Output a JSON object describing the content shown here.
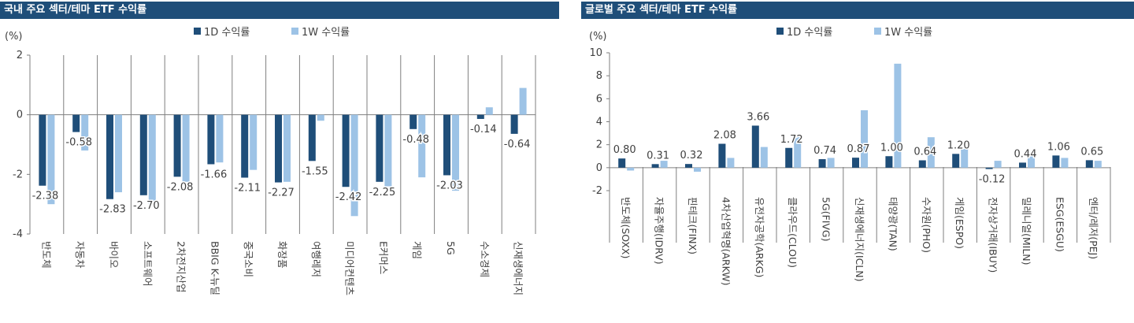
{
  "colors": {
    "title_bg": "#1f4e79",
    "series_1d": "#1f4e79",
    "series_1w": "#9dc3e6",
    "axis": "#7f7f7f",
    "text": "#404040"
  },
  "chart_data": [
    {
      "type": "bar",
      "title": "국내 주요 섹터/테마 ETF 수익률",
      "ylabel": "(%)",
      "xlabel": "",
      "ylim": [
        -4,
        2
      ],
      "yticks": [
        2,
        0,
        -2,
        -4
      ],
      "grid": false,
      "legend_position": "top",
      "categories": [
        "반도체",
        "자동차",
        "바이오",
        "소프트웨어",
        "2차전지산업",
        "BBIG K-뉴딜",
        "중국소비",
        "화장품",
        "여행레저",
        "미디어컨텐츠",
        "E커머스",
        "게임",
        "5G",
        "수소경제",
        "신재생에너지"
      ],
      "series": [
        {
          "name": "1D 수익률",
          "values": [
            -2.38,
            -0.58,
            -2.83,
            -2.7,
            -2.08,
            -1.66,
            -2.11,
            -2.27,
            -1.55,
            -2.42,
            -2.25,
            -0.48,
            -2.03,
            -0.14,
            -0.64
          ]
        },
        {
          "name": "1W 수익률",
          "values": [
            -3.0,
            -1.2,
            -2.6,
            -3.0,
            -2.25,
            -1.6,
            -1.85,
            -2.25,
            -0.2,
            -3.4,
            -2.4,
            -2.1,
            -2.55,
            0.25,
            0.9
          ]
        }
      ],
      "data_labels": [
        "-2.38",
        "-0.58",
        "-2.83",
        "-2.70",
        "-2.08",
        "-1.66",
        "-2.11",
        "-2.27",
        "-1.55",
        "-2.42",
        "-2.25",
        "-0.48",
        "-2.03",
        "-0.14",
        "-0.64"
      ]
    },
    {
      "type": "bar",
      "title": "글로벌 주요 섹터/테마 ETF 수익률",
      "ylabel": "(%)",
      "xlabel": "",
      "ylim": [
        -2,
        10
      ],
      "yticks": [
        10,
        8,
        6,
        4,
        2,
        0,
        -2
      ],
      "grid": false,
      "legend_position": "top",
      "categories": [
        "반도체(SOXX)",
        "자율주행(IDRV)",
        "핀테크(FINX)",
        "4차산업혁명(ARKW)",
        "유전자공학(ARKG)",
        "클라우드(CLOU)",
        "5G(FIVG)",
        "신재생에너지(ICLN)",
        "태양광(TAN)",
        "수자원(PHO)",
        "게임(ESPO)",
        "전자상거래(IBUY)",
        "밀레니얼(MILN)",
        "ESG(ESGU)",
        "엔터/레저(PEJ)"
      ],
      "series": [
        {
          "name": "1D 수익률",
          "values": [
            0.8,
            0.31,
            0.32,
            2.08,
            3.66,
            1.72,
            0.74,
            0.87,
            1.0,
            0.64,
            1.2,
            -0.12,
            0.44,
            1.06,
            0.65
          ]
        },
        {
          "name": "1W 수익률",
          "values": [
            -0.25,
            0.6,
            -0.35,
            0.85,
            1.8,
            2.65,
            0.85,
            5.0,
            9.05,
            2.65,
            1.65,
            0.6,
            1.2,
            0.85,
            0.6
          ]
        }
      ],
      "data_labels": [
        "0.80",
        "0.31",
        "0.32",
        "2.08",
        "3.66",
        "1.72",
        "0.74",
        "0.87",
        "1.00",
        "0.64",
        "1.20",
        "-0.12",
        "0.44",
        "1.06",
        "0.65"
      ]
    }
  ]
}
